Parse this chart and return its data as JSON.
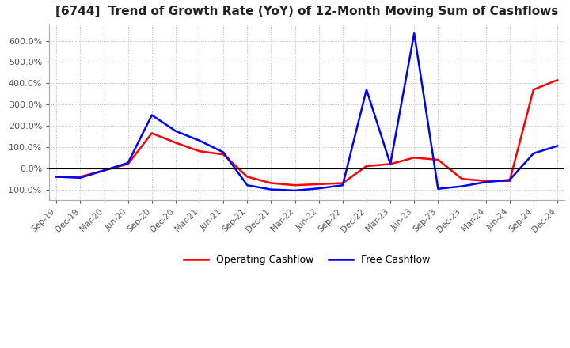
{
  "title": "[6744]  Trend of Growth Rate (YoY) of 12-Month Moving Sum of Cashflows",
  "title_fontsize": 11,
  "ylim": [
    -150,
    680
  ],
  "ytick_values": [
    -100,
    0,
    100,
    200,
    300,
    400,
    500,
    600
  ],
  "legend_labels": [
    "Operating Cashflow",
    "Free Cashflow"
  ],
  "legend_colors": [
    "#ff0000",
    "#0000ff"
  ],
  "dates": [
    "Sep-19",
    "Dec-19",
    "Mar-20",
    "Jun-20",
    "Sep-20",
    "Dec-20",
    "Mar-21",
    "Jun-21",
    "Sep-21",
    "Dec-21",
    "Mar-22",
    "Jun-22",
    "Sep-22",
    "Dec-22",
    "Mar-23",
    "Jun-23",
    "Sep-23",
    "Dec-23",
    "Mar-24",
    "Jun-24",
    "Sep-24",
    "Dec-24"
  ],
  "operating_cashflow": [
    -40,
    -40,
    -10,
    20,
    165,
    120,
    80,
    65,
    -40,
    -70,
    -80,
    -75,
    -70,
    10,
    20,
    50,
    40,
    -50,
    -60,
    -60,
    370,
    415
  ],
  "free_cashflow": [
    -40,
    -45,
    -10,
    25,
    250,
    175,
    130,
    75,
    -80,
    -100,
    -105,
    -95,
    -80,
    370,
    20,
    635,
    -97,
    -85,
    -65,
    -55,
    70,
    105
  ],
  "background_color": "#ffffff",
  "grid_color": "#aaaaaa",
  "line_width": 1.8
}
